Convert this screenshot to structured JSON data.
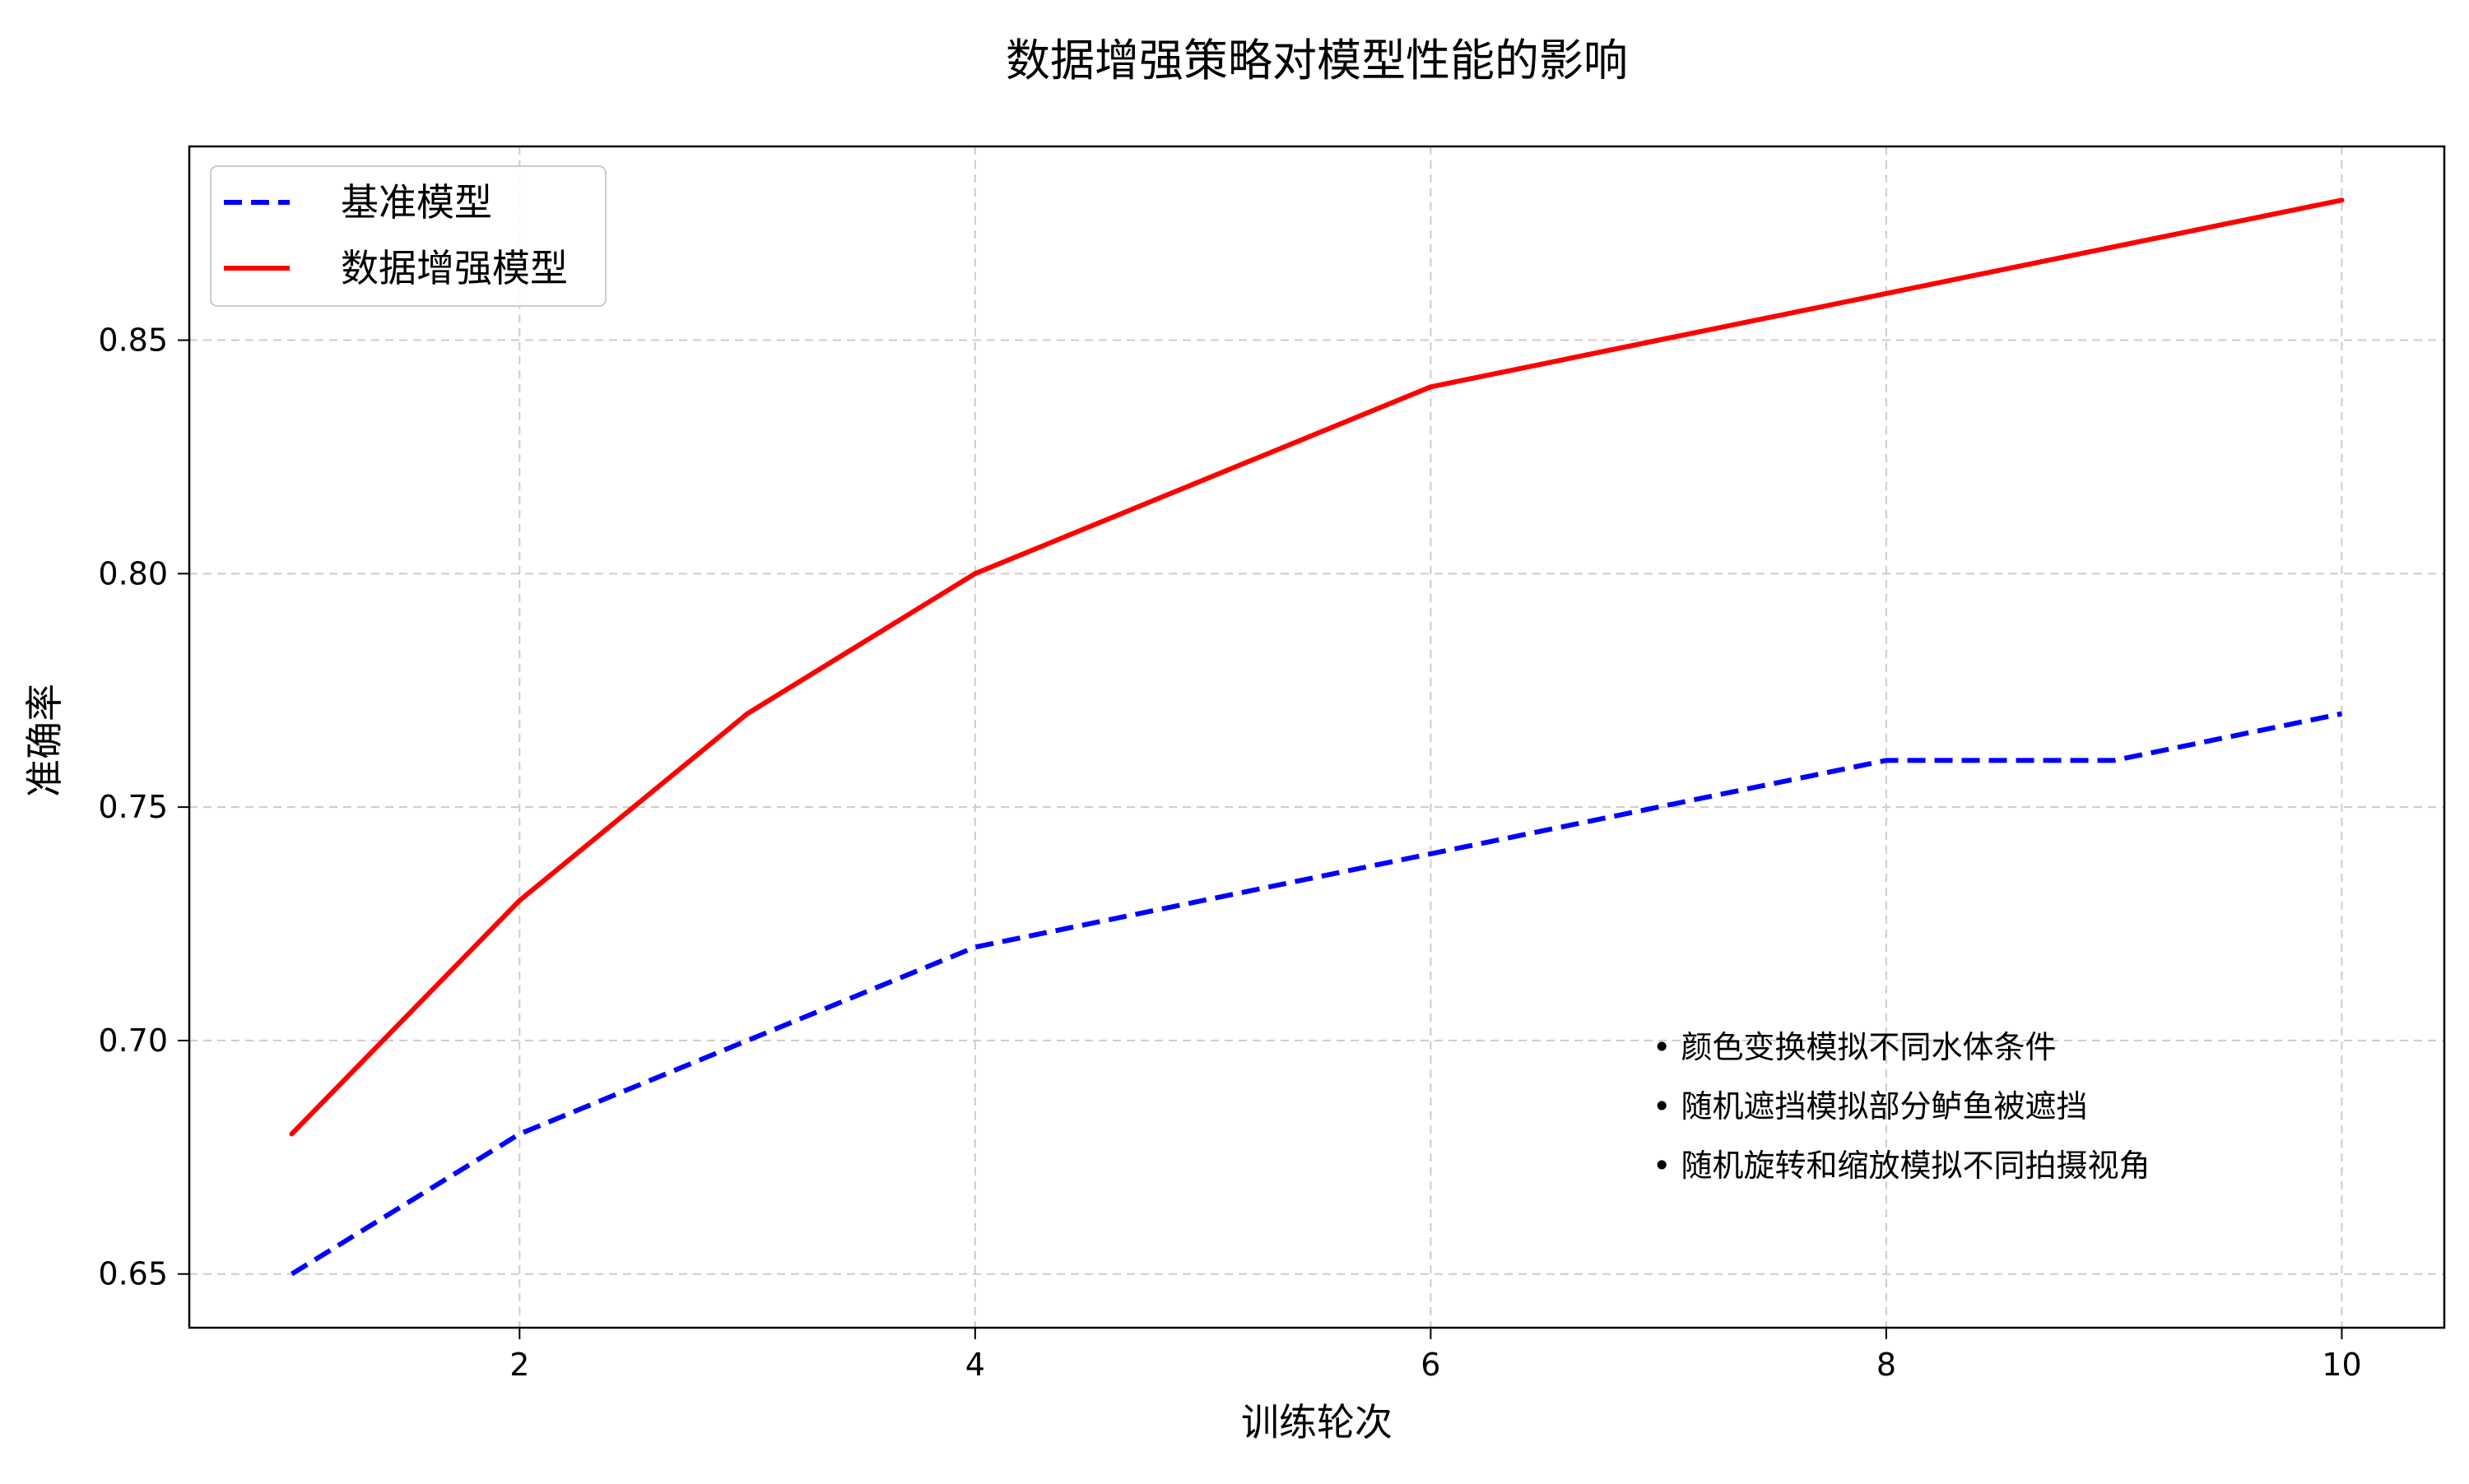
{
  "chart_data": {
    "type": "line",
    "title": "数据增强策略对模型性能的影响",
    "xlabel": "训练轮次",
    "ylabel": "准确率",
    "x": [
      1,
      2,
      3,
      4,
      5,
      6,
      7,
      8,
      9,
      10
    ],
    "series": [
      {
        "name": "基准模型",
        "values": [
          0.65,
          0.68,
          0.7,
          0.72,
          0.73,
          0.74,
          0.75,
          0.76,
          0.76,
          0.77
        ],
        "color": "#0000ff",
        "line_style": "dashed"
      },
      {
        "name": "数据增强模型",
        "values": [
          0.68,
          0.73,
          0.77,
          0.8,
          0.82,
          0.84,
          0.85,
          0.86,
          0.87,
          0.88
        ],
        "color": "#ff0000",
        "line_style": "solid"
      }
    ],
    "xlim": [
      0.55,
      10.45
    ],
    "ylim": [
      0.6385,
      0.8915
    ],
    "x_ticks": [
      "2",
      "4",
      "6",
      "8",
      "10"
    ],
    "y_ticks": [
      "0.65",
      "0.70",
      "0.75",
      "0.80",
      "0.85"
    ],
    "grid": true,
    "legend_position": "top-left",
    "annotations": [
      "• 颜色变换模拟不同水体条件",
      "• 随机遮挡模拟部分鲈鱼被遮挡",
      "• 随机旋转和缩放模拟不同拍摄视角"
    ]
  }
}
